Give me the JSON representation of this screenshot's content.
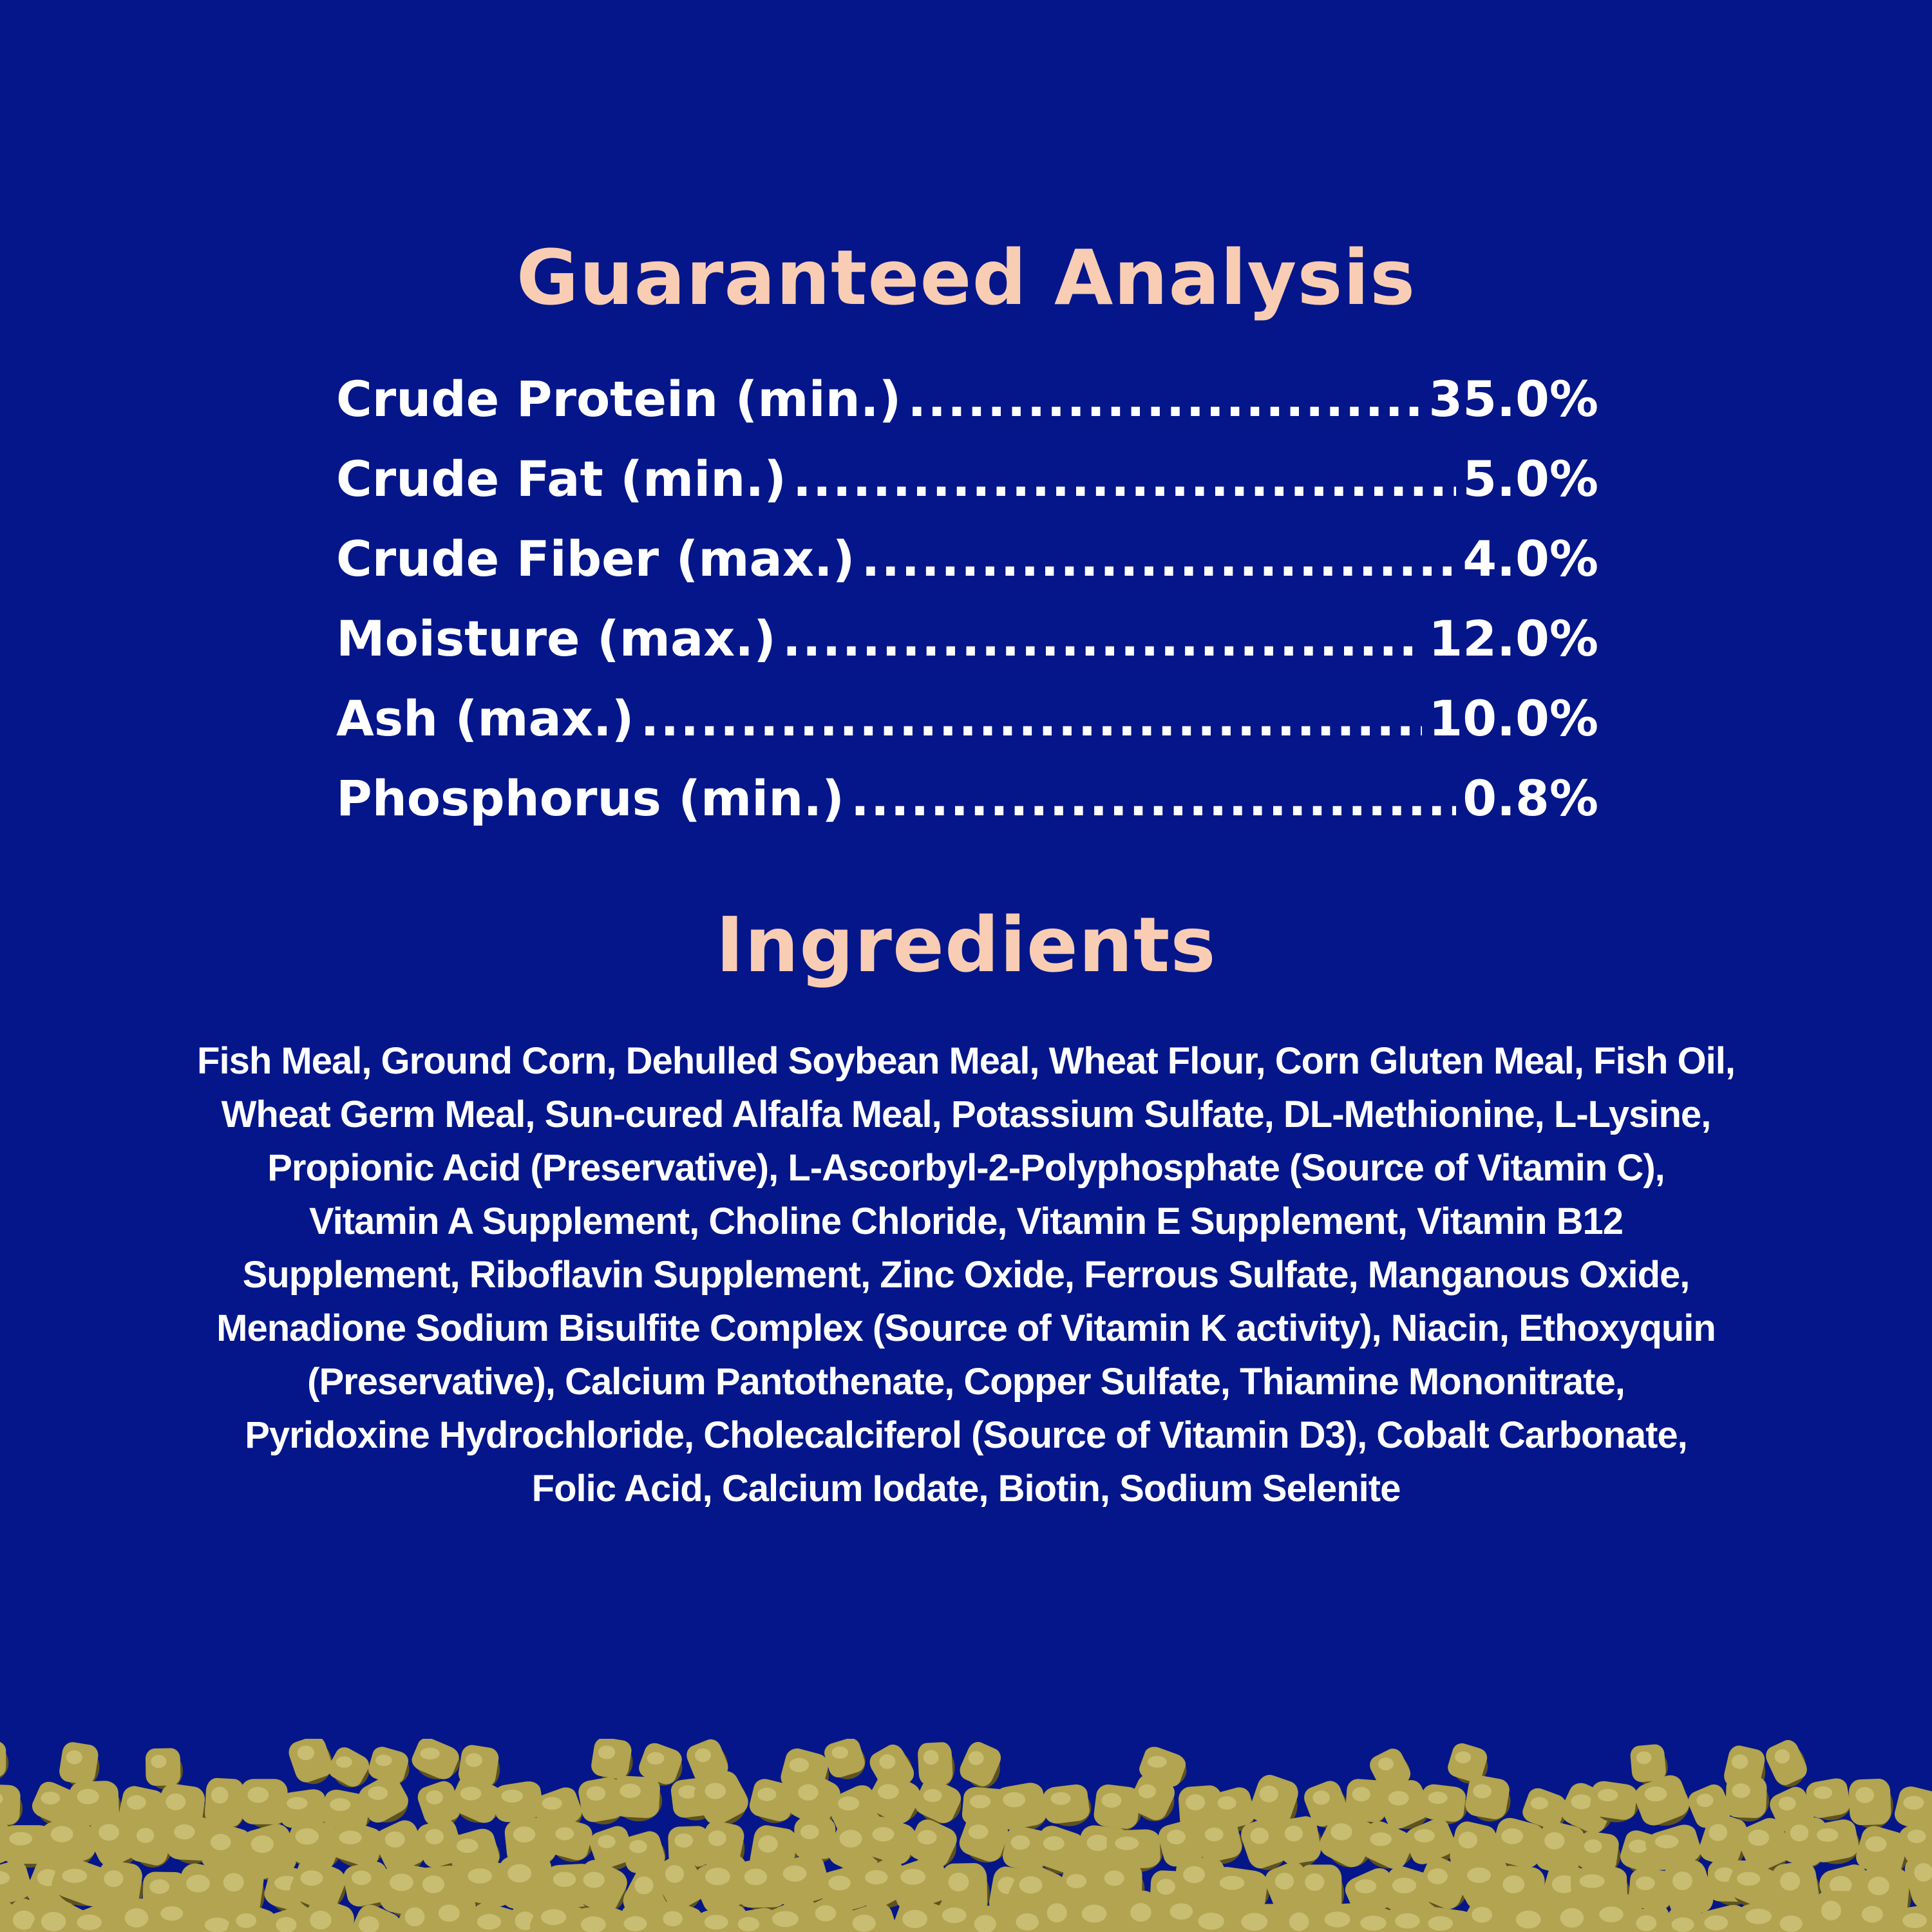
{
  "colors": {
    "background": "#04168a",
    "heading": "#f9cdb3",
    "text": "#ffffff",
    "pellet": "#b2a450",
    "pellet_shadow": "#5e5220",
    "pellet_highlight": "#ddd28e"
  },
  "analysis": {
    "title": "Guaranteed Analysis",
    "rows": [
      {
        "label": "Crude Protein (min.)",
        "value": "35.0%"
      },
      {
        "label": "Crude Fat (min.)",
        "value": "5.0%"
      },
      {
        "label": "Crude Fiber (max.)",
        "value": "4.0%"
      },
      {
        "label": "Moisture (max.)",
        "value": "12.0%"
      },
      {
        "label": "Ash (max.)",
        "value": "10.0%"
      },
      {
        "label": "Phosphorus (min.)",
        "value": "0.8%"
      }
    ]
  },
  "ingredients": {
    "title": "Ingredients",
    "lines": [
      "Fish Meal, Ground Corn, Dehulled Soybean Meal, Wheat Flour, Corn Gluten Meal, Fish Oil,",
      "Wheat Germ Meal, Sun-cured Alfalfa Meal, Potassium Sulfate, DL-Methionine, L-Lysine,",
      "Propionic Acid (Preservative), L-Ascorbyl-2-Polyphosphate (Source of Vitamin C),",
      "Vitamin A Supplement, Choline Chloride, Vitamin E Supplement, Vitamin B12",
      "Supplement, Riboflavin Supplement, Zinc Oxide, Ferrous Sulfate, Manganous Oxide,",
      "Menadione Sodium Bisulfite Complex (Source of Vitamin K activity), Niacin, Ethoxyquin",
      "(Preservative), Calcium Pantothenate, Copper Sulfate, Thiamine Mononitrate,",
      "Pyridoxine Hydrochloride, Cholecalciferol (Source of Vitamin D3), Cobalt Carbonate,",
      "Folic Acid, Calcium Iodate, Biotin, Sodium Selenite"
    ]
  }
}
